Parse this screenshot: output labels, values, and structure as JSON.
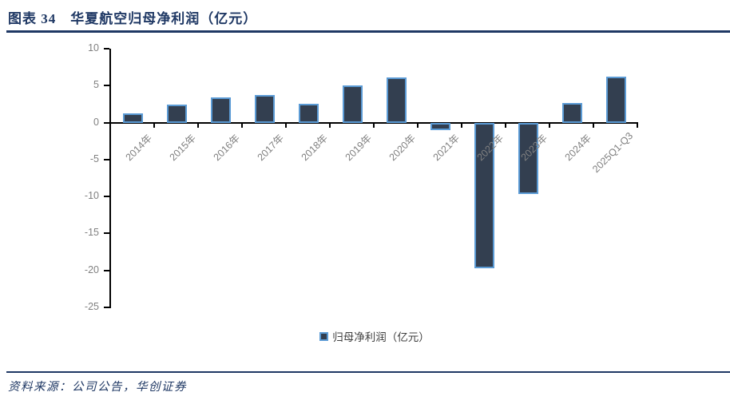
{
  "header": {
    "figure_label": "图表 34",
    "title": "华夏航空归母净利润（亿元）"
  },
  "footer": {
    "source": "资料来源：公司公告，华创证券"
  },
  "colors": {
    "accent_navy": "#1F3864",
    "bar_fill": "#333F50",
    "bar_border": "#5B9BD5",
    "axis_line": "#000000",
    "tick_label": "#808080",
    "legend_text": "#404040"
  },
  "chart_data": {
    "type": "bar",
    "title": "华夏航空归母净利润（亿元）",
    "categories": [
      "2014年",
      "2015年",
      "2016年",
      "2017年",
      "2018年",
      "2019年",
      "2020年",
      "2021年",
      "2022年",
      "2023年",
      "2024年",
      "2025Q1-Q3"
    ],
    "values": [
      1.2,
      2.4,
      3.4,
      3.7,
      2.5,
      5.0,
      6.1,
      -1.0,
      -19.7,
      -9.7,
      2.7,
      6.2
    ],
    "legend": [
      "归母净利润（亿元）"
    ],
    "legend_position": "bottom-center",
    "ylim": [
      -25,
      10
    ],
    "yticks": [
      10,
      5,
      0,
      -5,
      -10,
      -15,
      -20,
      -25
    ],
    "grid": false,
    "xlabel": "",
    "ylabel": ""
  }
}
